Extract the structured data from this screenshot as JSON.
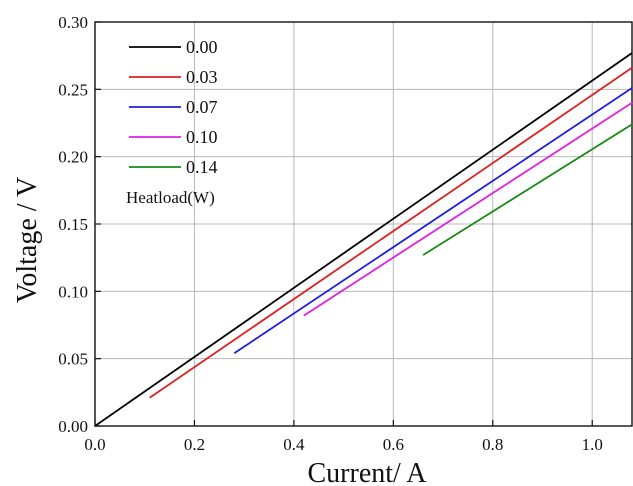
{
  "chart_data": {
    "type": "line",
    "title": "",
    "xlabel": "Current/ A",
    "ylabel": "Voltage / V",
    "xlim": [
      0.0,
      1.08
    ],
    "ylim": [
      0.0,
      0.3
    ],
    "grid": true,
    "legend_position": "top-left",
    "legend_title": "Heatload(W)",
    "x_ticks": [
      0.0,
      0.2,
      0.4,
      0.6,
      0.8,
      1.0
    ],
    "x_tick_labels": [
      "0.0",
      "0.2",
      "0.4",
      "0.6",
      "0.8",
      "1.0"
    ],
    "y_ticks": [
      0.0,
      0.05,
      0.1,
      0.15,
      0.2,
      0.25,
      0.3
    ],
    "y_tick_labels": [
      "0.00",
      "0.05",
      "0.10",
      "0.15",
      "0.20",
      "0.25",
      "0.30"
    ],
    "series": [
      {
        "name": "0.00",
        "color": "#000000",
        "x": [
          0.0,
          1.08
        ],
        "y": [
          0.0,
          0.277
        ]
      },
      {
        "name": "0.03",
        "color": "#e02020",
        "x": [
          0.11,
          1.08
        ],
        "y": [
          0.021,
          0.266
        ]
      },
      {
        "name": "0.07",
        "color": "#1e1edc",
        "x": [
          0.28,
          1.08
        ],
        "y": [
          0.054,
          0.251
        ]
      },
      {
        "name": "0.10",
        "color": "#e020e0",
        "x": [
          0.42,
          1.08
        ],
        "y": [
          0.082,
          0.24
        ]
      },
      {
        "name": "0.14",
        "color": "#178a17",
        "x": [
          0.66,
          1.08
        ],
        "y": [
          0.127,
          0.224
        ]
      }
    ]
  }
}
